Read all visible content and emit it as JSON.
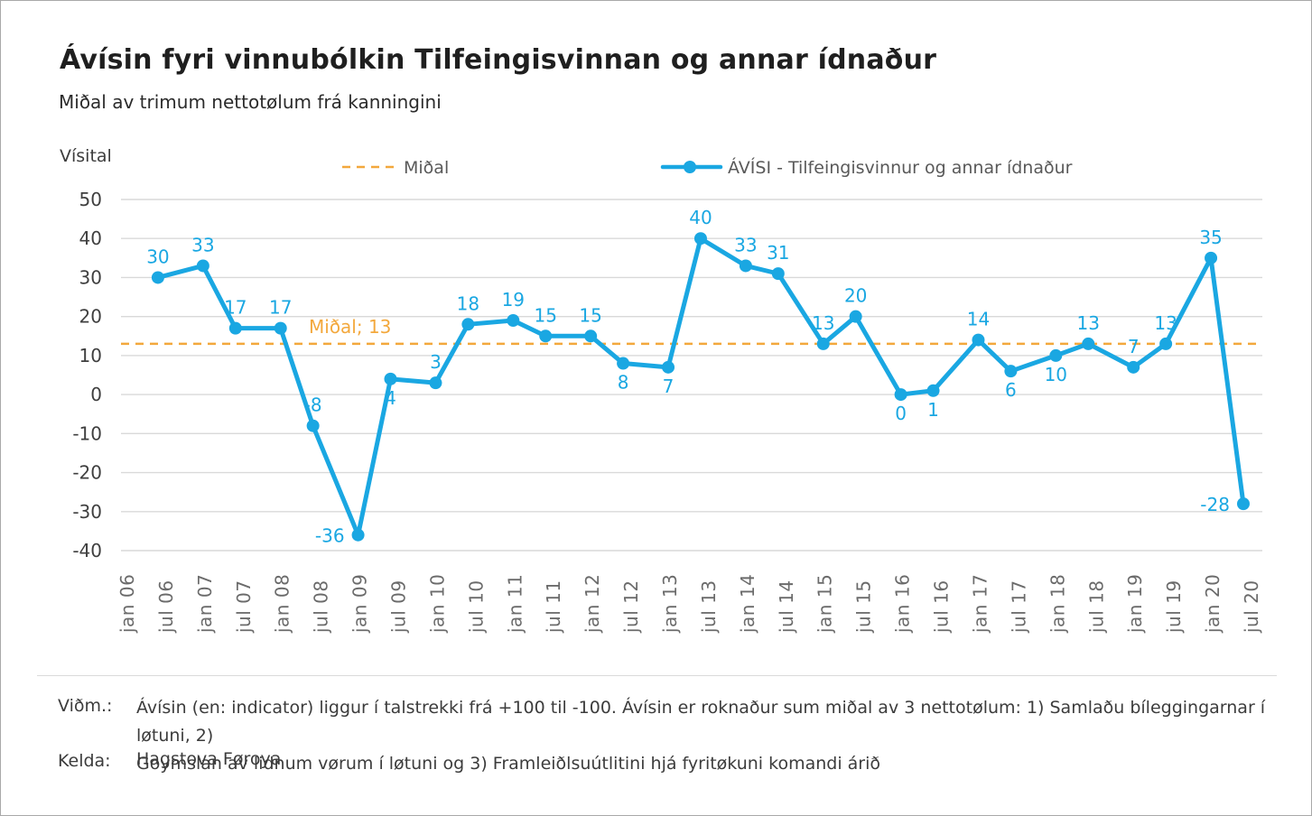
{
  "chart_data": {
    "type": "line",
    "title": "Ávísin fyri vinnubólkin Tilfeingisvinnan og annar ídnaður",
    "subtitle": "Miðal av trimum nettotølum frá kanningini",
    "ylabel": "Vísital",
    "ylim": [
      -40,
      50
    ],
    "ytick_step": 10,
    "grid": "horizontal",
    "legend_position": "top",
    "x_tick_labels": [
      "jan 06",
      "jul 06",
      "jan 07",
      "jul 07",
      "jan 08",
      "jul 08",
      "jan 09",
      "jul 09",
      "jan 10",
      "jul 10",
      "jan 11",
      "jul 11",
      "jan 12",
      "jul 12",
      "jan 13",
      "jul 13",
      "jan 14",
      "jul 14",
      "jan 15",
      "jul 15",
      "jan 16",
      "jul 16",
      "jan 17",
      "jul 17",
      "jan 18",
      "jul 18",
      "jan 19",
      "jul 19",
      "jan 20",
      "jul 20"
    ],
    "series": [
      {
        "name": "ÁVÍSI - Tilfeingisvinnur og annar ídnaður",
        "color": "#1aa7e2",
        "x": [
          "jul 06",
          "jan 07",
          "jul 07",
          "jan 08",
          "jul 08",
          "jan 09",
          "jul 09",
          "jan 10",
          "jul 10",
          "jan 11",
          "jul 11",
          "jan 12",
          "jul 12",
          "jan 13",
          "jul 13",
          "jan 14",
          "jul 14",
          "jan 15",
          "jul 15",
          "jan 16",
          "jul 16",
          "jan 17",
          "jul 17",
          "jan 18",
          "jul 18",
          "jan 19",
          "jul 19",
          "jan 20",
          "jul 20"
        ],
        "values": [
          30,
          33,
          17,
          17,
          -8,
          -36,
          4,
          3,
          18,
          19,
          15,
          15,
          8,
          7,
          40,
          33,
          31,
          13,
          20,
          0,
          1,
          14,
          6,
          10,
          13,
          7,
          13,
          35,
          -28
        ],
        "label_positions": [
          "above",
          "above",
          "above",
          "above",
          "above",
          "left",
          "below",
          "above",
          "above",
          "above",
          "above",
          "above",
          "below",
          "below",
          "above",
          "above",
          "above",
          "above",
          "above",
          "below",
          "below",
          "above",
          "below",
          "below",
          "above",
          "above",
          "above",
          "above",
          "left"
        ]
      }
    ],
    "average_line": {
      "legend_label": "Miðal",
      "value": 13,
      "annotation": "Miðal; 13",
      "color": "#f3a83c"
    },
    "colors": {
      "gridline": "#d9d9d9",
      "y_tick_text": "#3f3f3f",
      "x_tick_text": "#6b6b6b",
      "legend_text": "#595959"
    }
  },
  "footer": {
    "note_label": "Viðm.:",
    "note_lines": [
      "Ávísin (en: indicator) liggur í talstrekki frá +100 til -100. Ávísin er roknaður sum miðal av 3 nettotølum: 1) Samlaðu bíleggingarnar í løtuni, 2)",
      "Goymslan av lidnum vørum í løtuni og 3) Framleiðlsuútlitini hjá fyritøkuni komandi árið"
    ],
    "source_label": "Kelda:",
    "source": "Hagstova Føroya"
  }
}
